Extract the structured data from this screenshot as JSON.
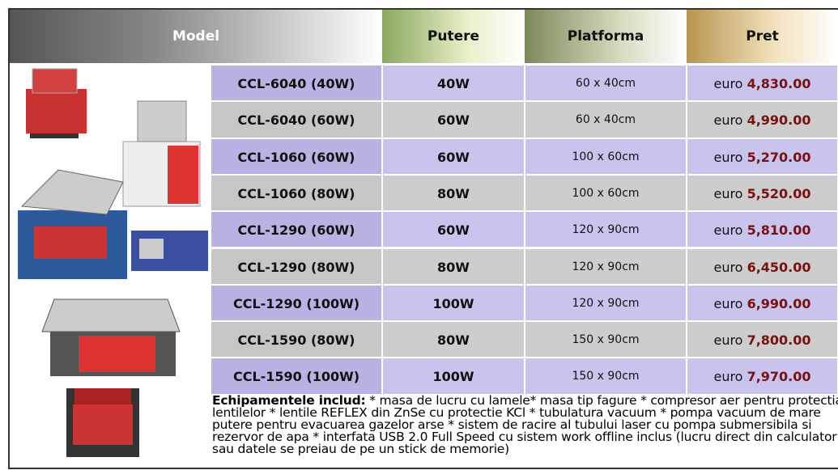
{
  "header": {
    "model": "Model",
    "power": "Putere",
    "platform": "Platforma",
    "price": "Pret"
  },
  "rows": [
    {
      "model": "CCL-6040 (40W)",
      "power": "40W",
      "platform": "60 x 40cm",
      "currency": "euro",
      "price": "4,830.00"
    },
    {
      "model": "CCL-6040 (60W)",
      "power": "60W",
      "platform": "60 x 40cm",
      "currency": "euro",
      "price": "4,990.00"
    },
    {
      "model": "CCL-1060 (60W)",
      "power": "60W",
      "platform": "100 x 60cm",
      "currency": "euro",
      "price": "5,270.00"
    },
    {
      "model": "CCL-1060 (80W)",
      "power": "80W",
      "platform": "100 x 60cm",
      "currency": "euro",
      "price": "5,520.00"
    },
    {
      "model": "CCL-1290 (60W)",
      "power": "60W",
      "platform": "120 x 90cm",
      "currency": "euro",
      "price": "5,810.00"
    },
    {
      "model": "CCL-1290 (80W)",
      "power": "80W",
      "platform": "120 x 90cm",
      "currency": "euro",
      "price": "6,450.00"
    },
    {
      "model": "CCL-1290 (100W)",
      "power": "100W",
      "platform": "120 x 90cm",
      "currency": "euro",
      "price": "6,990.00"
    },
    {
      "model": "CCL-1590 (80W)",
      "power": "80W",
      "platform": "150 x 90cm",
      "currency": "euro",
      "price": "7,800.00"
    },
    {
      "model": "CCL-1590 (100W)",
      "power": "100W",
      "platform": "150 x 90cm",
      "currency": "euro",
      "price": "7,970.00"
    }
  ],
  "footer": {
    "label": "Echipamentele includ:",
    "text": " * masa de lucru cu lamele* masa tip fagure * compresor aer pentru protectia lentilelor * lentile REFLEX din ZnSe cu protectie KCl * tubulatura vacuum * pompa vacuum de mare putere pentru evacuarea gazelor arse * sistem de racire al tubului laser cu pompa submersibila si rezervor de apa * interfata USB 2.0 Full Speed cu sistem work offline inclus (lucru direct din calculator sau datele se preiau de pe un stick de memorie)"
  }
}
